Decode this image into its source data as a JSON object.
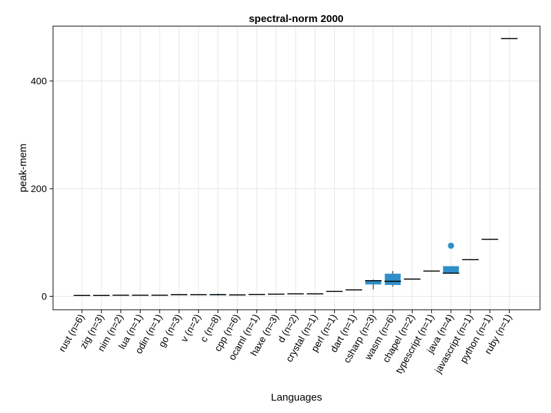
{
  "chart_data": {
    "type": "box",
    "title": "spectral-norm 2000",
    "xlabel": "Languages",
    "ylabel": "peak-mem",
    "ylim": [
      -25,
      502
    ],
    "yticks": [
      0,
      200,
      400
    ],
    "grid": true,
    "legend": "none",
    "box_color": "#2f8fc9",
    "outlier_color": "#2f8fc9",
    "median_color": "#000000",
    "categories": [
      "rust (n=6)",
      "zig (n=3)",
      "nim (n=2)",
      "lua (n=1)",
      "odin (n=1)",
      "go (n=3)",
      "v (n=2)",
      "c (n=8)",
      "cpp (n=6)",
      "ocaml (n=1)",
      "haxe (n=3)",
      "d (n=2)",
      "crystal (n=1)",
      "perl (n=1)",
      "dart (n=1)",
      "csharp (n=3)",
      "wasm (n=6)",
      "chapel (n=2)",
      "typescript (n=1)",
      "java (n=4)",
      "javascript (n=1)",
      "python (n=1)",
      "ruby (n=1)"
    ],
    "boxes": [
      {
        "min": 1,
        "q1": 1,
        "median": 1.5,
        "q3": 2,
        "max": 2
      },
      {
        "min": 1,
        "q1": 1,
        "median": 1.5,
        "q3": 2,
        "max": 2
      },
      {
        "min": 1.5,
        "q1": 1.5,
        "median": 2,
        "q3": 2,
        "max": 2
      },
      {
        "min": 2,
        "q1": 2,
        "median": 2,
        "q3": 2,
        "max": 2
      },
      {
        "min": 2,
        "q1": 2,
        "median": 2,
        "q3": 2,
        "max": 2
      },
      {
        "min": 2,
        "q1": 2.5,
        "median": 3,
        "q3": 4,
        "max": 4
      },
      {
        "min": 2.5,
        "q1": 2.5,
        "median": 3,
        "q3": 3,
        "max": 3
      },
      {
        "min": 1.5,
        "q1": 2,
        "median": 3,
        "q3": 4,
        "max": 5
      },
      {
        "min": 1.5,
        "q1": 2,
        "median": 2.5,
        "q3": 3.5,
        "max": 4
      },
      {
        "min": 3.5,
        "q1": 3.5,
        "median": 3.5,
        "q3": 3.5,
        "max": 3.5
      },
      {
        "min": 3.5,
        "q1": 3.5,
        "median": 4,
        "q3": 4.5,
        "max": 4.5
      },
      {
        "min": 4,
        "q1": 4,
        "median": 4.5,
        "q3": 5,
        "max": 5
      },
      {
        "min": 4.5,
        "q1": 4.5,
        "median": 4.5,
        "q3": 4.5,
        "max": 4.5
      },
      {
        "min": 9,
        "q1": 9,
        "median": 9,
        "q3": 9,
        "max": 9
      },
      {
        "min": 12,
        "q1": 12,
        "median": 12,
        "q3": 12,
        "max": 12
      },
      {
        "min": 13,
        "q1": 22,
        "median": 29,
        "q3": 30,
        "max": 31
      },
      {
        "min": 18,
        "q1": 21,
        "median": 28,
        "q3": 42,
        "max": 47
      },
      {
        "min": 32,
        "q1": 32,
        "median": 32,
        "q3": 33,
        "max": 33
      },
      {
        "min": 47,
        "q1": 47,
        "median": 47,
        "q3": 47,
        "max": 47
      },
      {
        "min": 43,
        "q1": 43,
        "median": 43,
        "q3": 56,
        "max": 56,
        "outliers": [
          94
        ]
      },
      {
        "min": 68,
        "q1": 68,
        "median": 68,
        "q3": 68,
        "max": 68
      },
      {
        "min": 106,
        "q1": 106,
        "median": 106,
        "q3": 106,
        "max": 106
      },
      {
        "min": 479,
        "q1": 479,
        "median": 479,
        "q3": 479,
        "max": 479
      }
    ]
  }
}
